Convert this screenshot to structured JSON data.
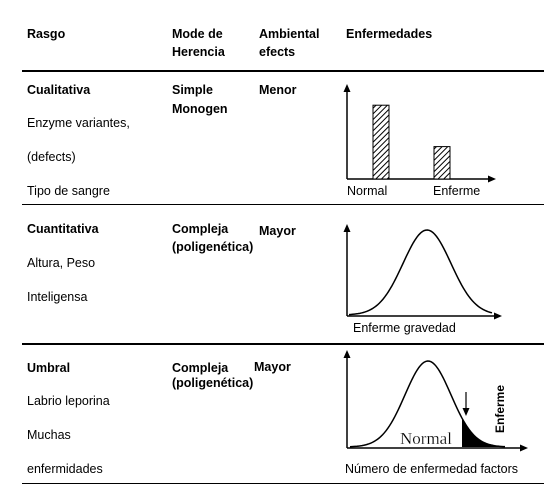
{
  "header": {
    "col1": "Rasgo",
    "col2_line1": "Mode de",
    "col2_line2": "Herencia",
    "col3_line1": "Ambiental",
    "col3_line2": "efects",
    "col4": "Enfermedades"
  },
  "rows": [
    {
      "trait": "Cualitativa",
      "examples": [
        "Enzyme variantes,",
        "(defects)",
        "Tipo de sangre"
      ],
      "mode_line1": "Simple",
      "mode_line2": "Monogen",
      "environment": "Menor",
      "chart": {
        "type": "bar",
        "categories": [
          "Normal",
          "Enferme"
        ],
        "values": [
          0.82,
          0.36
        ],
        "label_normal": "Normal",
        "label_enferme": "Enferme"
      }
    },
    {
      "trait": "Cuantitativa",
      "examples": [
        "Altura, Peso",
        "Inteligensa"
      ],
      "mode_line1": "Compleja",
      "mode_line2": "(poligenética)",
      "environment": "Mayor",
      "chart": {
        "type": "area",
        "shape": "normal-curve",
        "xlabel": "Enferme gravedad"
      }
    },
    {
      "trait": "Umbral",
      "examples": [
        "Labrio leporina",
        "Muchas",
        "enfermidades"
      ],
      "mode_line1": "Compleja",
      "mode_line2": "(poligenética)",
      "environment": "Mayor",
      "chart": {
        "type": "area",
        "shape": "normal-curve-with-threshold",
        "curve_label": "Normal",
        "tail_label": "Enferme",
        "xlabel": "Número de enfermedad factors"
      }
    }
  ]
}
